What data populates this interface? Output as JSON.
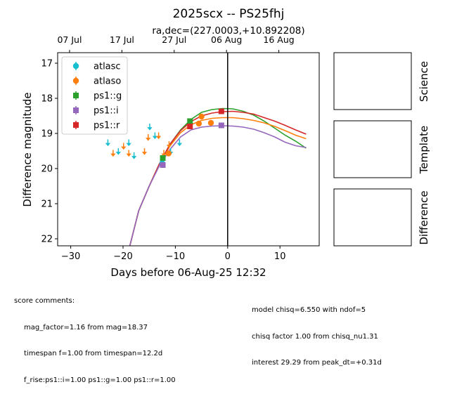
{
  "chart_data": {
    "type": "scatter",
    "title": "2025scx -- PS25fhj",
    "subtitle": "ra,dec=(227.0003,+10.892208)",
    "xlabel": "Days before 06-Aug-25 12:32",
    "ylabel": "Difference magnitude",
    "xlim": [
      -32.5,
      17.5
    ],
    "ylim": [
      22.2,
      16.7
    ],
    "y_inverted": true,
    "x_ticks": [
      -30,
      -20,
      -10,
      0,
      10
    ],
    "x_tick_labels": [
      "−30",
      "−20",
      "−10",
      "0",
      "10"
    ],
    "y_ticks": [
      17,
      18,
      19,
      20,
      21,
      22
    ],
    "y_tick_labels": [
      "17",
      "18",
      "19",
      "20",
      "21",
      "22"
    ],
    "top_axis_ticks": [
      -30.22,
      -20.22,
      -10.22,
      -0.22,
      9.78
    ],
    "top_axis_labels": [
      "07 Jul",
      "17 Jul",
      "27 Jul",
      "06 Aug",
      "16 Aug"
    ],
    "vline_x": 0,
    "legend_position": "upper-left",
    "grid": false,
    "series": [
      {
        "name": "atlasc",
        "color": "#17becf",
        "marker": "circle",
        "points": [
          {
            "x": -12.5,
            "y": 19.85,
            "err": 0.12
          }
        ],
        "upper_limits": [
          {
            "x": -22.9,
            "y": 19.25
          },
          {
            "x": -20.9,
            "y": 19.5
          },
          {
            "x": -18.9,
            "y": 19.25
          },
          {
            "x": -17.9,
            "y": 19.62
          },
          {
            "x": -14.9,
            "y": 18.8
          },
          {
            "x": -13.9,
            "y": 19.05
          },
          {
            "x": -10.9,
            "y": 19.5
          },
          {
            "x": -9.2,
            "y": 19.25
          }
        ]
      },
      {
        "name": "atlaso",
        "color": "#ff7f0e",
        "marker": "circle",
        "points": [
          {
            "x": -11.3,
            "y": 19.57,
            "err": 0.06
          },
          {
            "x": -5.0,
            "y": 18.52,
            "err": 0.04
          },
          {
            "x": -3.2,
            "y": 18.7,
            "err": 0.04
          },
          {
            "x": -5.5,
            "y": 18.72,
            "err": 0.04
          }
        ],
        "upper_limits": [
          {
            "x": -21.9,
            "y": 19.55
          },
          {
            "x": -19.9,
            "y": 19.35
          },
          {
            "x": -18.9,
            "y": 19.55
          },
          {
            "x": -15.9,
            "y": 19.5
          },
          {
            "x": -15.2,
            "y": 19.1
          },
          {
            "x": -13.2,
            "y": 19.05
          },
          {
            "x": -12.2,
            "y": 19.55
          },
          {
            "x": -11.2,
            "y": 19.3
          }
        ]
      },
      {
        "name": "ps1::g",
        "color": "#2ca02c",
        "marker": "square",
        "points": [
          {
            "x": -12.4,
            "y": 19.7,
            "err": 0.05
          },
          {
            "x": -7.2,
            "y": 18.65,
            "err": 0.04
          }
        ]
      },
      {
        "name": "ps1::i",
        "color": "#9467bd",
        "marker": "square",
        "points": [
          {
            "x": -12.4,
            "y": 19.9,
            "err": 0.05
          },
          {
            "x": -1.2,
            "y": 18.77,
            "err": 0.04
          }
        ]
      },
      {
        "name": "ps1::r",
        "color": "#d62728",
        "marker": "square",
        "points": [
          {
            "x": -7.2,
            "y": 18.8,
            "err": 0.04
          },
          {
            "x": -1.2,
            "y": 18.37,
            "err": 0.04
          }
        ]
      }
    ],
    "model_curves": [
      {
        "filter": "ps1::g",
        "color": "#2ca02c",
        "points": [
          [
            -18.7,
            22.2
          ],
          [
            -17,
            21.2
          ],
          [
            -15,
            20.5
          ],
          [
            -13,
            19.85
          ],
          [
            -11,
            19.3
          ],
          [
            -9,
            18.9
          ],
          [
            -7,
            18.6
          ],
          [
            -5,
            18.4
          ],
          [
            -3,
            18.32
          ],
          [
            -1,
            18.29
          ],
          [
            1,
            18.3
          ],
          [
            3,
            18.37
          ],
          [
            5,
            18.48
          ],
          [
            7,
            18.65
          ],
          [
            9,
            18.85
          ],
          [
            11,
            19.05
          ],
          [
            13,
            19.22
          ],
          [
            15,
            19.42
          ]
        ]
      },
      {
        "filter": "atlaso",
        "color": "#ff7f0e",
        "points": [
          [
            -18.7,
            22.2
          ],
          [
            -17,
            21.2
          ],
          [
            -15,
            20.5
          ],
          [
            -13,
            19.85
          ],
          [
            -11,
            19.35
          ],
          [
            -9,
            18.98
          ],
          [
            -7,
            18.75
          ],
          [
            -5,
            18.63
          ],
          [
            -3,
            18.57
          ],
          [
            -1,
            18.55
          ],
          [
            1,
            18.55
          ],
          [
            3,
            18.58
          ],
          [
            5,
            18.63
          ],
          [
            7,
            18.7
          ],
          [
            9,
            18.8
          ],
          [
            11,
            18.92
          ],
          [
            13,
            19.05
          ],
          [
            15,
            19.15
          ]
        ]
      },
      {
        "filter": "ps1::r",
        "color": "#d62728",
        "points": [
          [
            -18.7,
            22.2
          ],
          [
            -17,
            21.2
          ],
          [
            -15,
            20.5
          ],
          [
            -13,
            19.85
          ],
          [
            -11,
            19.3
          ],
          [
            -9,
            18.92
          ],
          [
            -7,
            18.66
          ],
          [
            -5,
            18.5
          ],
          [
            -3,
            18.42
          ],
          [
            -1,
            18.38
          ],
          [
            1,
            18.37
          ],
          [
            3,
            18.4
          ],
          [
            5,
            18.45
          ],
          [
            7,
            18.55
          ],
          [
            9,
            18.65
          ],
          [
            11,
            18.77
          ],
          [
            13,
            18.9
          ],
          [
            15,
            19.02
          ]
        ]
      },
      {
        "filter": "ps1::i",
        "color": "#9467bd",
        "points": [
          [
            -18.7,
            22.2
          ],
          [
            -17,
            21.2
          ],
          [
            -15,
            20.5
          ],
          [
            -13,
            19.9
          ],
          [
            -11,
            19.45
          ],
          [
            -9,
            19.1
          ],
          [
            -7,
            18.9
          ],
          [
            -5,
            18.82
          ],
          [
            -3,
            18.79
          ],
          [
            -1,
            18.78
          ],
          [
            1,
            18.79
          ],
          [
            3,
            18.82
          ],
          [
            5,
            18.88
          ],
          [
            7,
            18.98
          ],
          [
            9,
            19.1
          ],
          [
            11,
            19.25
          ],
          [
            13,
            19.35
          ],
          [
            15,
            19.4
          ]
        ]
      }
    ]
  },
  "panels": {
    "science_label": "Science",
    "template_label": "Template",
    "difference_label": "Difference"
  },
  "comments": {
    "header": "score comments:",
    "left_lines": [
      "mag_factor=1.16 from mag=18.37",
      "timespan f=1.00 from timespan=12.2d",
      "f_rise:ps1::i=1.00 ps1::g=1.00 ps1::r=1.00"
    ],
    "right_lines": [
      "model chisq=6.550 with ndof=5",
      "chisq factor 1.00 from chisq_nu1.31",
      "interest 29.29 from peak_dt=+0.31d"
    ]
  }
}
